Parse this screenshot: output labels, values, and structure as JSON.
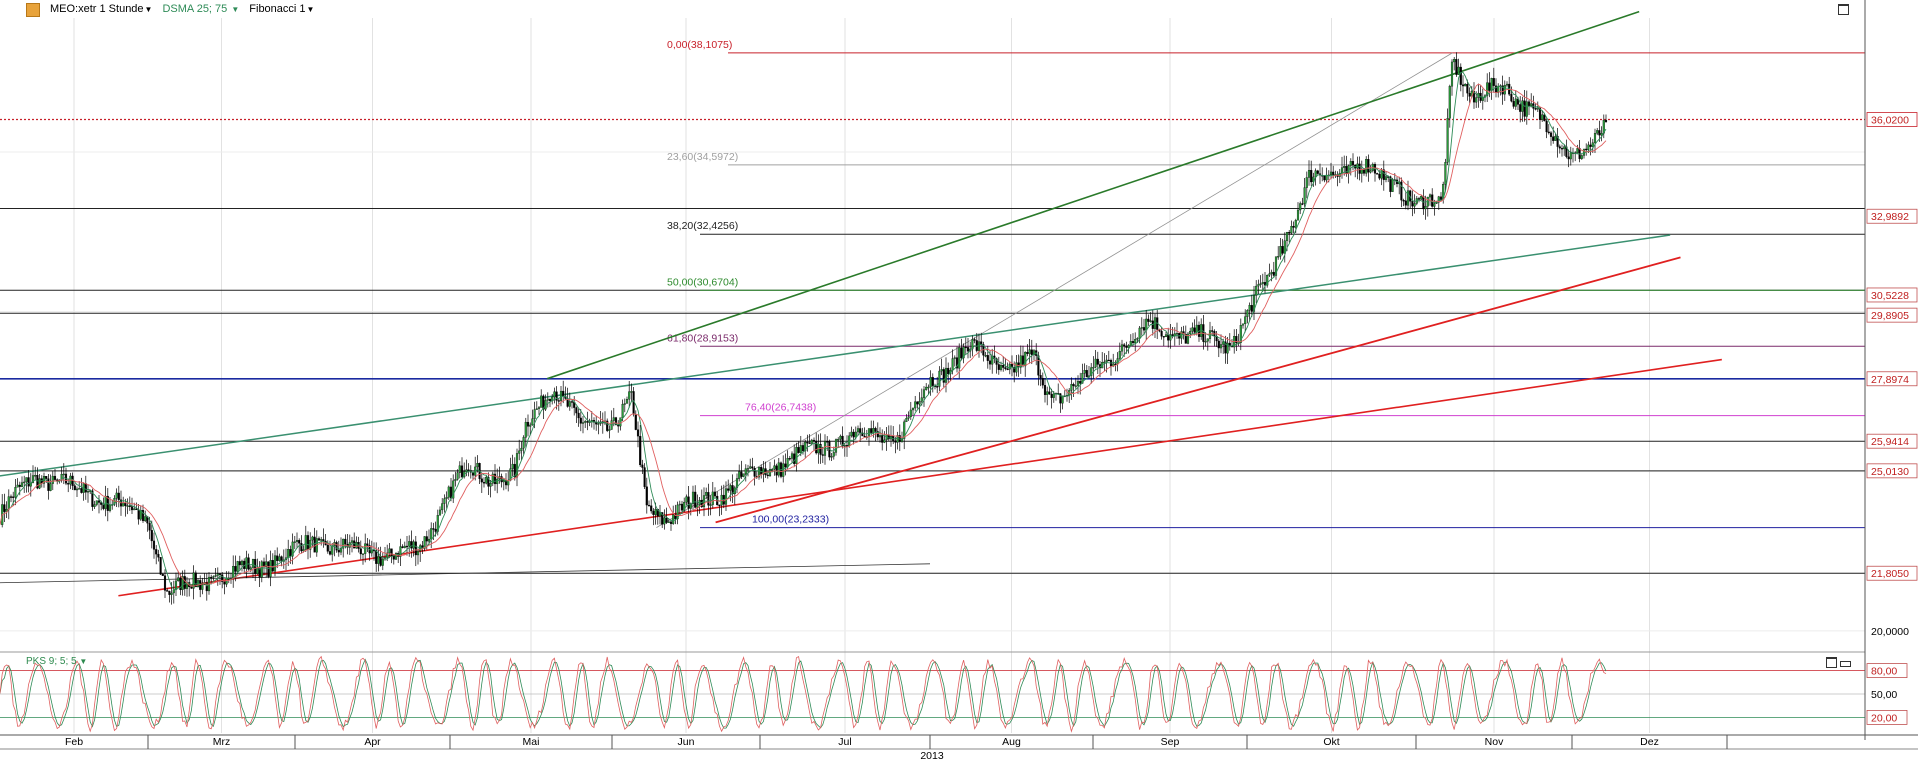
{
  "toolbar": {
    "instrument": "MEO:xetr 1 Stunde",
    "indicator": "DSMA 25; 75",
    "tool": "Fibonacci 1"
  },
  "sub_panel": {
    "indicator": "PKS 9; 5; 5"
  },
  "colors": {
    "price": "#000000",
    "ma_short": "#2e8b57",
    "ma_long": "#e06060",
    "fib_red": "#c8202a",
    "fib_gray": "#a0a0a0",
    "fib_green": "#2e8b2e",
    "fib_purple": "#7a2a6a",
    "fib_magenta": "#d040d0",
    "fib_blue": "#2020a0",
    "trend_green": "#2a7a2a",
    "trend_teal": "#3a9070",
    "trend_red": "#e02020",
    "hline_blue": "#1a2aa0",
    "stoch_k": "#e06060",
    "stoch_d": "#2e8b57"
  },
  "chart_data": {
    "type": "candlestick",
    "year": "2013",
    "months": [
      "Feb",
      "Mrz",
      "Apr",
      "Mai",
      "Jun",
      "Jul",
      "Aug",
      "Sep",
      "Okt",
      "Nov",
      "Dez"
    ],
    "y_range": [
      19.4,
      39.2
    ],
    "y_tick_labels": [
      "36,0200",
      "32,9892",
      "30,5228",
      "29,8905",
      "27,8974",
      "25,9414",
      "25,0130",
      "21,8050",
      "20,0000"
    ],
    "y_ticks": [
      36.02,
      32.9892,
      30.5228,
      29.8905,
      27.8974,
      25.9414,
      25.013,
      21.805,
      20.0
    ],
    "current_price": 36.02,
    "fibonacci": [
      {
        "label": "0,00(38,1075)",
        "level": 0.0,
        "price": 38.1075
      },
      {
        "label": "23,60(34,5972)",
        "level": 23.6,
        "price": 34.5972
      },
      {
        "label": "38,20(32,4256)",
        "level": 38.2,
        "price": 32.4256
      },
      {
        "label": "50,00(30,6704)",
        "level": 50.0,
        "price": 30.6704
      },
      {
        "label": "61,80(28,9153)",
        "level": 61.8,
        "price": 28.9153
      },
      {
        "label": "76,40(26,7438)",
        "level": 76.4,
        "price": 26.7438
      },
      {
        "label": "100,00(23,2333)",
        "level": 100.0,
        "price": 23.2333
      }
    ],
    "horizontal_lines": [
      33.23,
      30.67,
      29.95,
      27.8974,
      25.9414,
      25.013,
      21.805
    ],
    "price_anchors": [
      [
        "Feb-01",
        23.6
      ],
      [
        "Feb-08",
        24.9
      ],
      [
        "Feb-15",
        24.5
      ],
      [
        "Feb-25",
        24.0
      ],
      [
        "Mrz-01",
        23.4
      ],
      [
        "Mrz-05",
        21.2
      ],
      [
        "Mrz-15",
        21.7
      ],
      [
        "Mrz-25",
        22.1
      ],
      [
        "Apr-05",
        22.8
      ],
      [
        "Apr-15",
        22.4
      ],
      [
        "Apr-25",
        22.5
      ],
      [
        "Mai-01",
        24.4
      ],
      [
        "Mai-04",
        25.1
      ],
      [
        "Mai-08",
        24.8
      ],
      [
        "Mai-13",
        24.9
      ],
      [
        "Mai-15",
        26.3
      ],
      [
        "Mai-20",
        27.8
      ],
      [
        "Mai-25",
        26.4
      ],
      [
        "Jun-01",
        26.5
      ],
      [
        "Jun-05",
        27.2
      ],
      [
        "Jun-08",
        23.8
      ],
      [
        "Jun-12",
        23.6
      ],
      [
        "Jun-20",
        24.1
      ],
      [
        "Jul-01",
        25.0
      ],
      [
        "Jul-10",
        25.6
      ],
      [
        "Jul-18",
        26.2
      ],
      [
        "Jul-25",
        26.0
      ],
      [
        "Aug-01",
        27.8
      ],
      [
        "Aug-08",
        28.9
      ],
      [
        "Aug-15",
        28.2
      ],
      [
        "Aug-20",
        28.5
      ],
      [
        "Aug-23",
        27.3
      ],
      [
        "Aug-30",
        27.9
      ],
      [
        "Sep-05",
        28.7
      ],
      [
        "Sep-12",
        29.6
      ],
      [
        "Sep-20",
        29.2
      ],
      [
        "Sep-28",
        29.0
      ],
      [
        "Okt-05",
        31.1
      ],
      [
        "Okt-12",
        34.1
      ],
      [
        "Okt-20",
        34.6
      ],
      [
        "Okt-28",
        34.0
      ],
      [
        "Nov-01",
        33.3
      ],
      [
        "Nov-06",
        33.4
      ],
      [
        "Nov-08",
        38.1
      ],
      [
        "Nov-12",
        36.5
      ],
      [
        "Nov-18",
        37.2
      ],
      [
        "Nov-22",
        36.4
      ],
      [
        "Dez-01",
        35.0
      ],
      [
        "Dez-05",
        35.1
      ],
      [
        "Dez-08",
        35.8
      ]
    ],
    "trendlines": [
      {
        "name": "green-up",
        "from": [
          "Mai-19",
          27.9
        ],
        "to": [
          "Dez-14",
          39.4
        ]
      },
      {
        "name": "teal",
        "from": [
          "Jan-28",
          24.8
        ],
        "to": [
          "Dez-20",
          32.4
        ]
      },
      {
        "name": "red-steep",
        "from": [
          "Jun-22",
          23.4
        ],
        "to": [
          "Dez-22",
          31.7
        ]
      },
      {
        "name": "red-long",
        "from": [
          "Feb-25",
          21.1
        ],
        "to": [
          "Dez-30",
          28.5
        ]
      },
      {
        "name": "black-low",
        "from": [
          "Jan-28",
          21.5
        ],
        "to": [
          "Aug-01",
          22.1
        ]
      }
    ],
    "oscillator": {
      "name": "PKS 9; 5; 5",
      "y_range": [
        0,
        100
      ],
      "levels": [
        20,
        50,
        80
      ],
      "tick_labels": [
        "80,00",
        "50,00",
        "20,00"
      ]
    }
  }
}
